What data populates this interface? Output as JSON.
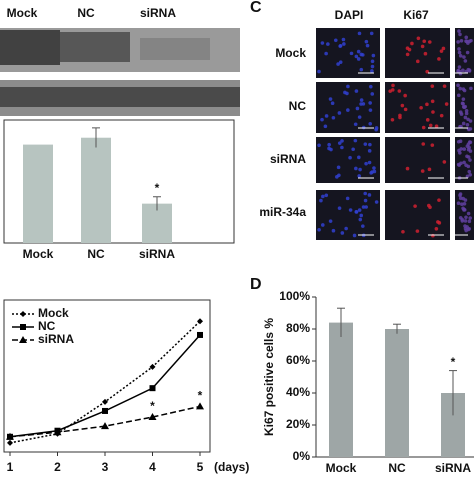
{
  "blot": {
    "lanes": [
      "Mock",
      "NC",
      "siRNA"
    ]
  },
  "panel_c": {
    "label": "C",
    "columns": [
      "DAPI",
      "Ki67"
    ],
    "rows": [
      "Mock",
      "NC",
      "siRNA",
      "miR-34a"
    ]
  },
  "chart_data": [
    {
      "type": "bar",
      "categories": [
        "Mock",
        "NC",
        "siRNA"
      ],
      "values": [
        1.0,
        1.07,
        0.4
      ],
      "errors": [
        0,
        0.1,
        0.07
      ],
      "color": "#b7c4c0",
      "ylim": [
        0,
        1.25
      ],
      "annotations": [
        "*"
      ]
    },
    {
      "type": "line",
      "x": [
        1,
        2,
        3,
        4,
        5
      ],
      "xticks": [
        1,
        2,
        3,
        4,
        5
      ],
      "xlim": [
        1,
        5
      ],
      "x_unit": "(days)",
      "ylim": [
        0,
        1
      ],
      "series": [
        {
          "name": "Mock",
          "color": "#000000",
          "line_style": "dotted",
          "marker": "diamond",
          "values": [
            0.06,
            0.12,
            0.33,
            0.56,
            0.86
          ]
        },
        {
          "name": "NC",
          "color": "#000000",
          "line_style": "solid",
          "marker": "square",
          "values": [
            0.1,
            0.14,
            0.27,
            0.42,
            0.77
          ]
        },
        {
          "name": "siRNA",
          "color": "#000000",
          "line_style": "dashed",
          "marker": "triangle",
          "values": [
            0.1,
            0.13,
            0.17,
            0.23,
            0.3
          ]
        }
      ],
      "annotations": [
        "*",
        "*"
      ],
      "legend": "top-left"
    },
    {
      "type": "bar",
      "panel_label": "D",
      "y_label": "Ki67 positive cells %",
      "categories": [
        "Mock",
        "NC",
        "siRNA"
      ],
      "values": [
        84,
        80,
        40
      ],
      "errors": [
        9,
        3,
        14
      ],
      "color": "#9ea6a6",
      "ylim": [
        0,
        100
      ],
      "yticks": [
        {
          "value": 0,
          "label": "0%"
        },
        {
          "value": 20,
          "label": "20%"
        },
        {
          "value": 40,
          "label": "40%"
        },
        {
          "value": 60,
          "label": "60%"
        },
        {
          "value": 80,
          "label": "80%"
        },
        {
          "value": 100,
          "label": "100%"
        }
      ],
      "annotations": [
        "*"
      ]
    }
  ]
}
